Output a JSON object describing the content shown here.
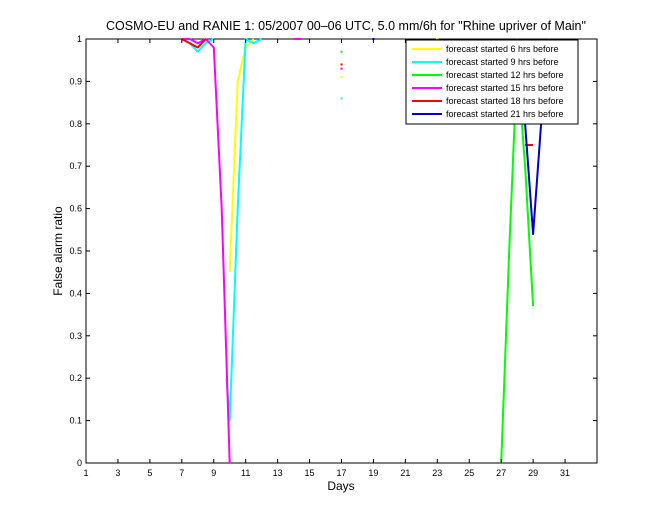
{
  "chart_data": {
    "type": "line",
    "title": "COSMO-EU and RANIE 1: 05/2007 00–06 UTC, 5.0 mm/6h for \"Rhine upriver of Main\"",
    "xlabel": "Days",
    "ylabel": "False alarm ratio",
    "xlim": [
      1,
      33
    ],
    "ylim": [
      0,
      1
    ],
    "x_ticks": [
      1,
      3,
      5,
      7,
      9,
      11,
      13,
      15,
      17,
      19,
      21,
      23,
      25,
      27,
      29,
      31
    ],
    "y_ticks": [
      0,
      0.1,
      0.2,
      0.3,
      0.4,
      0.5,
      0.6,
      0.7,
      0.8,
      0.9,
      1
    ],
    "grid": false,
    "legend_position": "top-right",
    "series": [
      {
        "name": "forecast started 6 hrs before",
        "color": "#ffff00",
        "segments": [
          [
            [
              7,
              1
            ],
            [
              7.5,
              0.99
            ],
            [
              8,
              0.98
            ],
            [
              8.5,
              1
            ]
          ],
          [
            [
              10,
              0.45
            ],
            [
              10.5,
              0.9
            ],
            [
              11,
              0.98
            ],
            [
              11.5,
              1
            ]
          ]
        ],
        "dots": [
          [
            17,
            0.91
          ],
          [
            23,
            1
          ]
        ]
      },
      {
        "name": "forecast started 9 hrs before",
        "color": "#00ffff",
        "segments": [
          [
            [
              7,
              1
            ],
            [
              7.5,
              0.99
            ],
            [
              8,
              0.97
            ],
            [
              8.5,
              0.99
            ],
            [
              9,
              1
            ]
          ],
          [
            [
              9.8,
              0.2
            ],
            [
              10,
              0.1
            ],
            [
              10.5,
              0.6
            ],
            [
              11,
              1
            ],
            [
              11.5,
              0.99
            ],
            [
              12,
              1
            ]
          ]
        ],
        "dots": [
          [
            17,
            0.86
          ]
        ]
      },
      {
        "name": "forecast started 12 hrs before",
        "color": "#00ff00",
        "segments": [
          [
            [
              27,
              0
            ],
            [
              27.5,
              0.5
            ],
            [
              28,
              0.95
            ],
            [
              28.5,
              0.7
            ],
            [
              29,
              0.37
            ]
          ]
        ],
        "dots": [
          [
            17,
            0.97
          ]
        ]
      },
      {
        "name": "forecast started 15 hrs before",
        "color": "#ff00ff",
        "segments": [
          [
            [
              7,
              1
            ],
            [
              7.5,
              1
            ],
            [
              8,
              0.99
            ],
            [
              8.5,
              1
            ],
            [
              9,
              0.98
            ],
            [
              9.5,
              0.6
            ],
            [
              10,
              0
            ]
          ],
          [
            [
              14,
              1
            ],
            [
              14.5,
              1
            ]
          ]
        ],
        "dots": [
          [
            17,
            0.93
          ]
        ]
      },
      {
        "name": "forecast started 18 hrs before",
        "color": "#ff0000",
        "segments": [
          [
            [
              7,
              1
            ],
            [
              7.5,
              0.99
            ],
            [
              8,
              0.98
            ],
            [
              8.5,
              1
            ]
          ],
          [
            [
              28.5,
              0.75
            ],
            [
              29,
              0.75
            ]
          ]
        ],
        "dots": [
          [
            17,
            0.94
          ]
        ]
      },
      {
        "name": "forecast started 21 hrs before",
        "color": "#0000cc",
        "segments": [
          [
            [
              28,
              1
            ],
            [
              28.5,
              0.8
            ],
            [
              29,
              0.54
            ],
            [
              29.5,
              0.8
            ],
            [
              30,
              1
            ]
          ]
        ],
        "dots": [
          [
            19,
            1
          ]
        ]
      }
    ]
  }
}
